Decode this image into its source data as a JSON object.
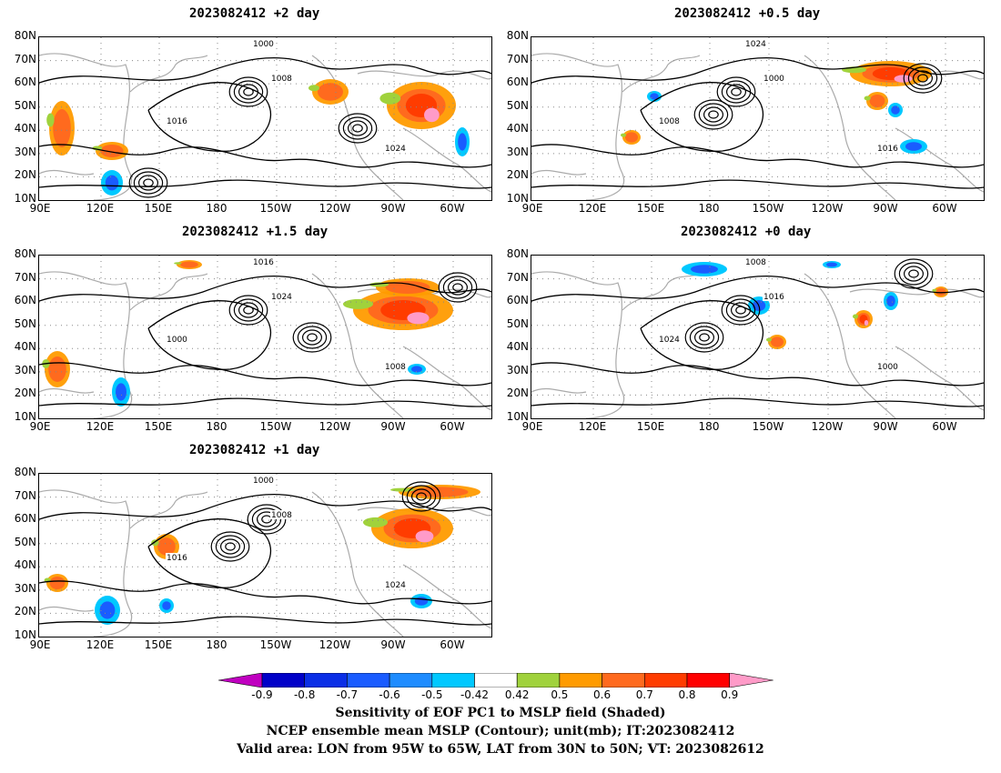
{
  "panels": [
    {
      "title": "2023082412 +2 day"
    },
    {
      "title": "2023082412 +0.5 day"
    },
    {
      "title": "2023082412 +1.5 day"
    },
    {
      "title": "2023082412 +0 day"
    },
    {
      "title": "2023082412 +1 day"
    }
  ],
  "lat_ticks": [
    "80N",
    "70N",
    "60N",
    "50N",
    "40N",
    "30N",
    "20N",
    "10N"
  ],
  "lon_ticks": [
    "90E",
    "120E",
    "150E",
    "180",
    "150W",
    "120W",
    "90W",
    "60W"
  ],
  "contour_labels": [
    "1000",
    "1008",
    "1016",
    "1024"
  ],
  "colorbar": {
    "levels": [
      "-0.9",
      "-0.8",
      "-0.7",
      "-0.6",
      "-0.5",
      "-0.42",
      "0.42",
      "0.5",
      "0.6",
      "0.7",
      "0.8",
      "0.9"
    ],
    "colors": [
      "#c000c0",
      "#0000c8",
      "#0a2ee6",
      "#1a5cff",
      "#1e8cff",
      "#00c8ff",
      "#ffffff",
      "#a0d23c",
      "#ff9b00",
      "#ff6a1e",
      "#ff3c00",
      "#ff0000",
      "#ff9bc8"
    ]
  },
  "captions": {
    "line1": "Sensitivity of EOF PC1 to MSLP field (Shaded)",
    "line2": "NCEP ensemble mean MSLP (Contour); unit(mb); IT:2023082412",
    "line3": "Valid area: LON from 95W to 65W, LAT from 30N to 50N; VT: 2023082612"
  }
}
